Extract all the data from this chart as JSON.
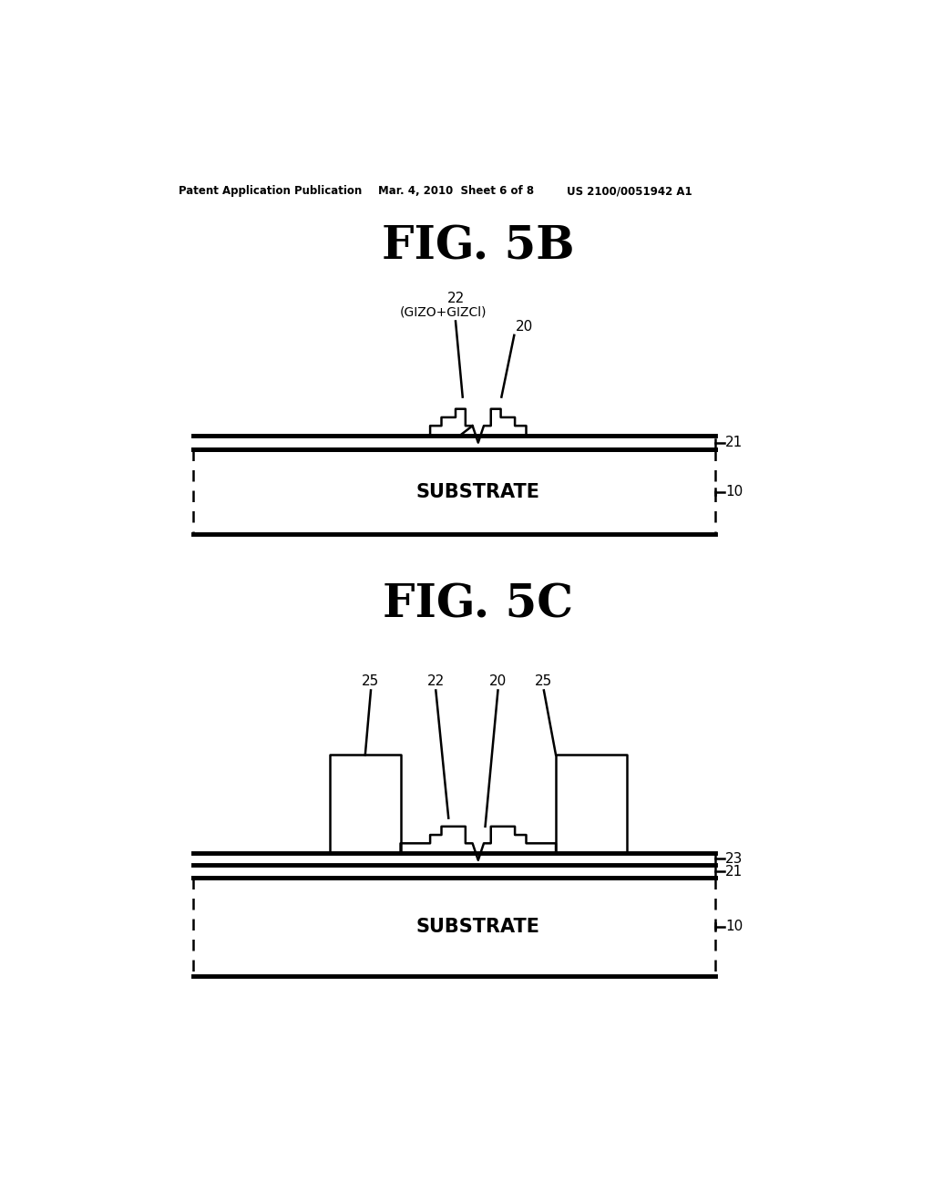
{
  "background_color": "#ffffff",
  "header_left": "Patent Application Publication",
  "header_center": "Mar. 4, 2010  Sheet 6 of 8",
  "header_right": "US 2100/0051942 A1",
  "fig5b_title": "FIG. 5B",
  "fig5c_title": "FIG. 5C",
  "line_color": "#000000",
  "lw": 1.8,
  "lw_thick": 3.5
}
